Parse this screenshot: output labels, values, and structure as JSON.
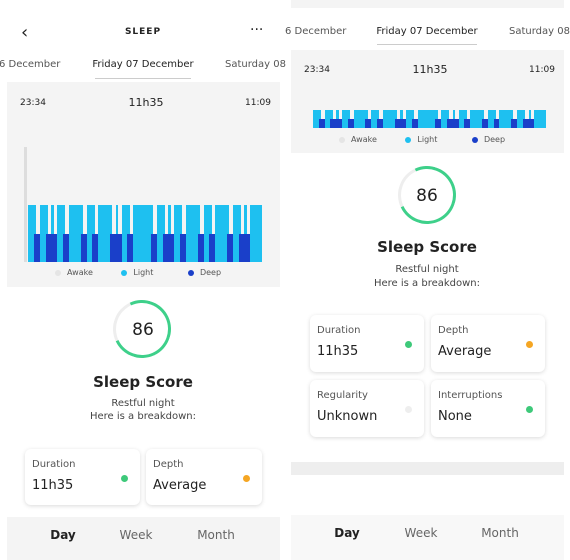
{
  "left": {
    "header": {
      "title": "SLEEP"
    },
    "dates": [
      "6 December",
      "Friday 07 December",
      "Saturday 08"
    ],
    "chart": {
      "start": "23:34",
      "duration": "11h35",
      "end": "11:09",
      "legend": [
        "Awake",
        "Light",
        "Deep"
      ]
    },
    "score": {
      "value": "86",
      "label": "Sleep Score",
      "line1": "Restful night",
      "line2": "Here is a breakdown:"
    },
    "cards": [
      {
        "label": "Duration",
        "value": "11h35"
      },
      {
        "label": "Depth",
        "value": "Average"
      }
    ],
    "tabs": [
      "Day",
      "Week",
      "Month"
    ]
  },
  "right": {
    "dates": [
      "6 December",
      "Friday 07 December",
      "Saturday 08"
    ],
    "chart": {
      "start": "23:34",
      "duration": "11h35",
      "end": "11:09",
      "legend": [
        "Awake",
        "Light",
        "Deep"
      ]
    },
    "score": {
      "value": "86",
      "label": "Sleep Score",
      "line1": "Restful night",
      "line2": "Here is a breakdown:"
    },
    "cards": [
      {
        "label": "Duration",
        "value": "11h35"
      },
      {
        "label": "Depth",
        "value": "Average"
      },
      {
        "label": "Regularity",
        "value": "Unknown"
      },
      {
        "label": "Interruptions",
        "value": "None"
      }
    ],
    "tabs": [
      "Day",
      "Week",
      "Month"
    ]
  }
}
